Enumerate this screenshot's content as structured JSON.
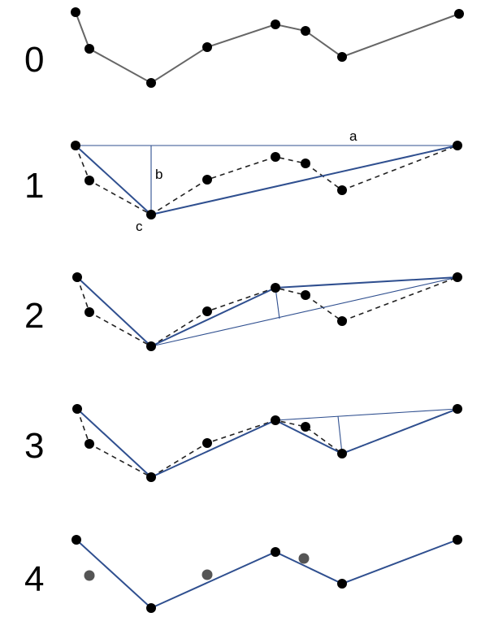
{
  "steps": [
    {
      "label": "0"
    },
    {
      "label": "1",
      "annotations": {
        "a": "a",
        "b": "b",
        "c": "c"
      }
    },
    {
      "label": "2"
    },
    {
      "label": "3"
    },
    {
      "label": "4"
    }
  ],
  "colors": {
    "original_line": "#666666",
    "simplified_line": "#2f4f8f",
    "points": "#000000",
    "discarded_points": "#555555"
  }
}
